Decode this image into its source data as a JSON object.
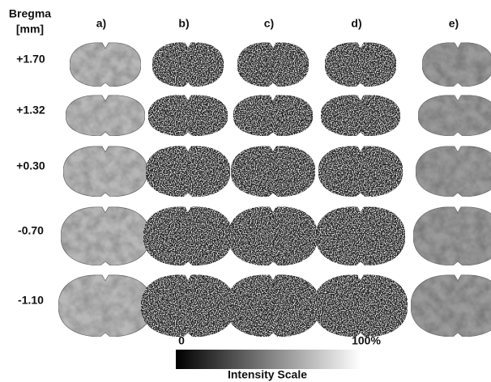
{
  "header": {
    "title_lines": [
      "Bregma",
      "[mm]"
    ]
  },
  "columns": [
    "a)",
    "b)",
    "c)",
    "d)",
    "e)"
  ],
  "rows": [
    "+1.70",
    "+1.32",
    "+0.30",
    "-0.70",
    "-1.10"
  ],
  "scale": {
    "min_label": "0",
    "max_label": "100%",
    "title": "Intensity Scale"
  }
}
